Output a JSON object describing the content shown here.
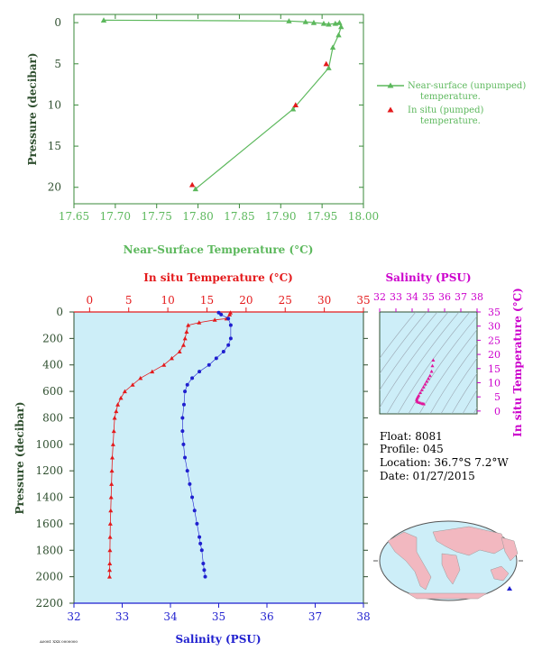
{
  "colors": {
    "green": "#5cb85c",
    "green_dark": "#3a8a3a",
    "red": "#e41a1c",
    "blue": "#1f1fcf",
    "magenta": "#e0169b",
    "magenta_axis": "#cc00cc",
    "panel_bg": "#cdeef8",
    "axis_dark": "#2f4f2f",
    "land": "#f2b8c0"
  },
  "chart_data": [
    {
      "type": "line",
      "xlabel": "Near-Surface Temperature (°C)",
      "ylabel": "Pressure (decibar)",
      "xlim": [
        17.65,
        18.0
      ],
      "ylim": [
        22,
        -1
      ],
      "xticks": [
        "17.65",
        "17.70",
        "17.75",
        "17.80",
        "17.85",
        "17.90",
        "17.95",
        "18.00"
      ],
      "yticks": [
        "0",
        "5",
        "10",
        "15",
        "20"
      ],
      "series": [
        {
          "name": "Near-surface (unpumped) temperature.",
          "marker": "triangle",
          "x": [
            17.686,
            17.91,
            17.93,
            17.94,
            17.952,
            17.958,
            17.966,
            17.971,
            17.973,
            17.97,
            17.963,
            17.958,
            17.915,
            17.797
          ],
          "y": [
            -0.3,
            -0.2,
            -0.1,
            0.0,
            0.1,
            0.2,
            0.1,
            0.0,
            0.5,
            1.5,
            3.0,
            5.5,
            10.5,
            20.2
          ]
        },
        {
          "name": "In situ (pumped) temperature.",
          "marker": "triangle",
          "x": [
            17.955,
            17.918,
            17.793
          ],
          "y": [
            5.0,
            10.0,
            19.7
          ]
        }
      ],
      "legend": [
        "Near-surface (unpumped)",
        "temperature.",
        "In situ (pumped)",
        "temperature."
      ]
    },
    {
      "type": "line",
      "ylabel": "Pressure (decibar)",
      "ylim": [
        2200,
        0
      ],
      "yticks": [
        "0",
        "200",
        "400",
        "600",
        "800",
        "1000",
        "1200",
        "1400",
        "1600",
        "1800",
        "2000",
        "2200"
      ],
      "temperature_axis": {
        "label": "In situ Temperature (°C)",
        "lim": [
          -2,
          35
        ],
        "ticks": [
          "0",
          "5",
          "10",
          "15",
          "20",
          "25",
          "30",
          "35"
        ]
      },
      "salinity_axis": {
        "label": "Salinity (PSU)",
        "lim": [
          32,
          38
        ],
        "ticks": [
          "32",
          "33",
          "34",
          "35",
          "36",
          "37",
          "38"
        ]
      },
      "series": [
        {
          "name": "In situ Temperature",
          "x": [
            18.0,
            17.9,
            17.5,
            16.0,
            14.0,
            12.6,
            12.4,
            12.2,
            12.0,
            11.5,
            10.5,
            9.5,
            8.0,
            6.5,
            5.5,
            4.5,
            4.0,
            3.6,
            3.4,
            3.2,
            3.1,
            3.0,
            2.9,
            2.85,
            2.8,
            2.75,
            2.7,
            2.65,
            2.62,
            2.6,
            2.58,
            2.56,
            2.55
          ],
          "y": [
            5,
            20,
            50,
            60,
            80,
            100,
            150,
            200,
            250,
            300,
            350,
            400,
            450,
            500,
            550,
            600,
            650,
            700,
            750,
            800,
            900,
            1000,
            1100,
            1200,
            1300,
            1400,
            1500,
            1600,
            1700,
            1800,
            1900,
            1950,
            2000
          ]
        },
        {
          "name": "Salinity",
          "x": [
            35.0,
            35.05,
            35.2,
            35.25,
            35.25,
            35.2,
            35.1,
            34.95,
            34.8,
            34.6,
            34.45,
            34.35,
            34.3,
            34.28,
            34.25,
            34.25,
            34.27,
            34.3,
            34.35,
            34.4,
            34.45,
            34.5,
            34.55,
            34.6,
            34.62,
            34.65,
            34.68,
            34.7,
            34.72
          ],
          "y": [
            5,
            20,
            50,
            100,
            200,
            250,
            300,
            350,
            400,
            450,
            500,
            550,
            600,
            700,
            800,
            900,
            1000,
            1100,
            1200,
            1300,
            1400,
            1500,
            1600,
            1700,
            1750,
            1800,
            1900,
            1950,
            2000
          ]
        }
      ]
    },
    {
      "type": "scatter",
      "xlabel": "Salinity (PSU)",
      "ylabel": "In situ Temperature (°C)",
      "xlim": [
        32,
        38
      ],
      "ylim": [
        -1,
        35
      ],
      "xticks": [
        "32",
        "33",
        "34",
        "35",
        "36",
        "37",
        "38"
      ],
      "yticks": [
        "0",
        "5",
        "10",
        "15",
        "20",
        "25",
        "30",
        "35"
      ],
      "series": [
        {
          "name": "Salinity vs Temperature",
          "x": [
            35.3,
            35.25,
            35.2,
            35.1,
            35.0,
            34.9,
            34.8,
            34.7,
            34.6,
            34.5,
            34.4,
            34.35,
            34.3,
            34.28,
            34.3,
            34.35,
            34.45,
            34.55,
            34.65,
            34.72
          ],
          "y": [
            18.0,
            16.0,
            14.0,
            12.5,
            11.5,
            10.5,
            9.5,
            8.5,
            7.5,
            6.5,
            5.5,
            5.0,
            4.5,
            4.0,
            3.5,
            3.2,
            3.0,
            2.8,
            2.6,
            2.55
          ]
        }
      ]
    }
  ],
  "info": {
    "float": "Float:  8081",
    "profile": "Profile:  045",
    "location": "Location:  36.7°S   7.2°W",
    "date": "Date:  01/27/2015"
  },
  "footer_note": "A0081 XXX 0000000"
}
